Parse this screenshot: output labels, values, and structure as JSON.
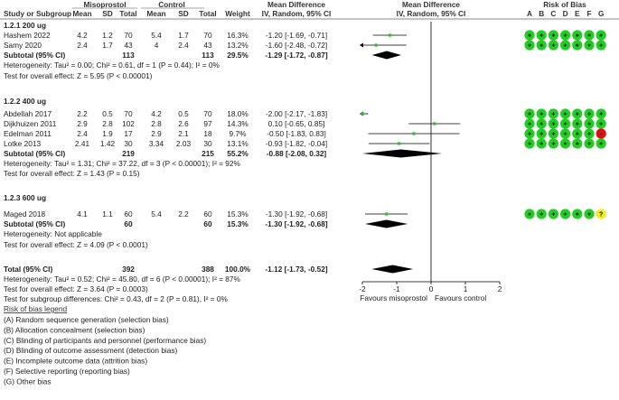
{
  "header": {
    "study": "Study or Subgroup",
    "group1": "Misoprostol",
    "group2": "Control",
    "mean": "Mean",
    "sd": "SD",
    "total": "Total",
    "weight": "Weight",
    "md1": "Mean Difference",
    "md1_sub": "IV, Random, 95% CI",
    "md2": "Mean Difference",
    "md2_sub": "IV, Random, 95% CI",
    "rob": "Risk of Bias",
    "rob_cols": [
      "A",
      "B",
      "C",
      "D",
      "E",
      "F",
      "G"
    ]
  },
  "chart_data": {
    "type": "forest",
    "x_axis": {
      "min": -2,
      "max": 2,
      "ticks": [
        -2,
        -1,
        0,
        1,
        2
      ],
      "tick_labels": [
        "-2",
        "-1",
        "0",
        "1",
        "2"
      ],
      "label_left": "Favours misoprostol",
      "label_right": "Favours control"
    },
    "subgroups": [
      {
        "title": "1.2.1 200 ug",
        "studies": [
          {
            "name": "Hashem 2022",
            "m1": "4.2",
            "sd1": "1.2",
            "n1": "70",
            "m2": "5.4",
            "sd2": "1.7",
            "n2": "70",
            "weight": "16.3%",
            "ci_text": "-1.20 [-1.69, -0.71]",
            "md": -1.2,
            "lo": -1.69,
            "hi": -0.71,
            "rob": [
              "+",
              "+",
              "+",
              "+",
              "+",
              "+",
              "+"
            ]
          },
          {
            "name": "Samy 2020",
            "m1": "2.4",
            "sd1": "1.7",
            "n1": "43",
            "m2": "4",
            "sd2": "2.4",
            "n2": "43",
            "weight": "13.2%",
            "ci_text": "-1.60 [-2.48, -0.72]",
            "md": -1.6,
            "lo": -2.48,
            "hi": -0.72,
            "rob": [
              "+",
              "+",
              "+",
              "+",
              "+",
              "+",
              "+"
            ]
          }
        ],
        "subtotal": {
          "label": "Subtotal (95% CI)",
          "n1": "113",
          "n2": "113",
          "weight": "29.5%",
          "ci_text": "-1.29 [-1.72, -0.87]",
          "md": -1.29,
          "lo": -1.72,
          "hi": -0.87
        },
        "heterogeneity": "Heterogeneity: Tau² = 0.00; Chi² = 0.61, df = 1 (P = 0.44); I² = 0%",
        "overall": "Test for overall effect: Z = 5.95 (P < 0.00001)"
      },
      {
        "title": "1.2.2 400 ug",
        "studies": [
          {
            "name": "Abdellah 2017",
            "m1": "2.2",
            "sd1": "0.5",
            "n1": "70",
            "m2": "4.2",
            "sd2": "0.5",
            "n2": "70",
            "weight": "18.0%",
            "ci_text": "-2.00 [-2.17, -1.83]",
            "md": -2.0,
            "lo": -2.17,
            "hi": -1.83,
            "rob": [
              "+",
              "+",
              "+",
              "+",
              "+",
              "+",
              "+"
            ]
          },
          {
            "name": "Dijkhuizen 2011",
            "m1": "2.9",
            "sd1": "2.8",
            "n1": "102",
            "m2": "2.8",
            "sd2": "2.6",
            "n2": "97",
            "weight": "14.3%",
            "ci_text": "0.10 [-0.65, 0.85]",
            "md": 0.1,
            "lo": -0.65,
            "hi": 0.85,
            "rob": [
              "+",
              "+",
              "+",
              "+",
              "+",
              "+",
              "+"
            ]
          },
          {
            "name": "Edelman 2011",
            "m1": "2.4",
            "sd1": "1.9",
            "n1": "17",
            "m2": "2.9",
            "sd2": "2.1",
            "n2": "18",
            "weight": "9.7%",
            "ci_text": "-0.50 [-1.83, 0.83]",
            "md": -0.5,
            "lo": -1.83,
            "hi": 0.83,
            "rob": [
              "+",
              "+",
              "+",
              "+",
              "+",
              "+",
              "-"
            ]
          },
          {
            "name": "Lotke 2013",
            "m1": "2.41",
            "sd1": "1.42",
            "n1": "30",
            "m2": "3.34",
            "sd2": "2.03",
            "n2": "30",
            "weight": "13.1%",
            "ci_text": "-0.93 [-1.82, -0.04]",
            "md": -0.93,
            "lo": -1.82,
            "hi": -0.04,
            "rob": [
              "+",
              "+",
              "+",
              "+",
              "+",
              "+",
              "+"
            ]
          }
        ],
        "subtotal": {
          "label": "Subtotal (95% CI)",
          "n1": "219",
          "n2": "215",
          "weight": "55.2%",
          "ci_text": "-0.88 [-2.08, 0.32]",
          "md": -0.88,
          "lo": -2.08,
          "hi": 0.32
        },
        "heterogeneity": "Heterogeneity: Tau² = 1.31; Chi² = 37.22, df = 3 (P < 0.00001); I² = 92%",
        "overall": "Test for overall effect: Z = 1.43 (P = 0.15)"
      },
      {
        "title": "1.2.3 600 ug",
        "studies": [
          {
            "name": "Maged 2018",
            "m1": "4.1",
            "sd1": "1.1",
            "n1": "60",
            "m2": "5.4",
            "sd2": "2.2",
            "n2": "60",
            "weight": "15.3%",
            "ci_text": "-1.30 [-1.92, -0.68]",
            "md": -1.3,
            "lo": -1.92,
            "hi": -0.68,
            "rob": [
              "+",
              "+",
              "+",
              "+",
              "+",
              "+",
              "?"
            ]
          }
        ],
        "subtotal": {
          "label": "Subtotal (95% CI)",
          "n1": "60",
          "n2": "60",
          "weight": "15.3%",
          "ci_text": "-1.30 [-1.92, -0.68]",
          "md": -1.3,
          "lo": -1.92,
          "hi": -0.68
        },
        "heterogeneity": "Heterogeneity: Not applicable",
        "overall": "Test for overall effect: Z = 4.09 (P < 0.0001)"
      }
    ],
    "total": {
      "label": "Total (95% CI)",
      "n1": "392",
      "n2": "388",
      "weight": "100.0%",
      "ci_text": "-1.12 [-1.73, -0.52]",
      "md": -1.12,
      "lo": -1.73,
      "hi": -0.52
    },
    "total_heterogeneity": "Heterogeneity: Tau² = 0.52; Chi² = 45.80, df = 6 (P < 0.00001); I² = 87%",
    "total_overall": "Test for overall effect: Z = 3.64 (P = 0.0003)",
    "subgroup_diff": "Test for subgroup differences: Chi² = 0.43, df = 2 (P = 0.81), I² = 0%"
  },
  "legend": {
    "title": "Risk of bias legend",
    "items": [
      "(A) Random sequence generation (selection bias)",
      "(B) Allocation concealment (selection bias)",
      "(C) Blinding of participants and personnel (performance bias)",
      "(D) Blinding of outcome assessment (detection bias)",
      "(E) Incomplete outcome data (attrition bias)",
      "(F) Selective reporting (reporting bias)",
      "(G) Other bias"
    ]
  },
  "colors": {
    "rob_low": "#22cc22",
    "rob_high": "#dd1111",
    "rob_unclear": "#eeee22",
    "marker": "#33bb33",
    "diamond": "#000000",
    "text": "#222222"
  }
}
